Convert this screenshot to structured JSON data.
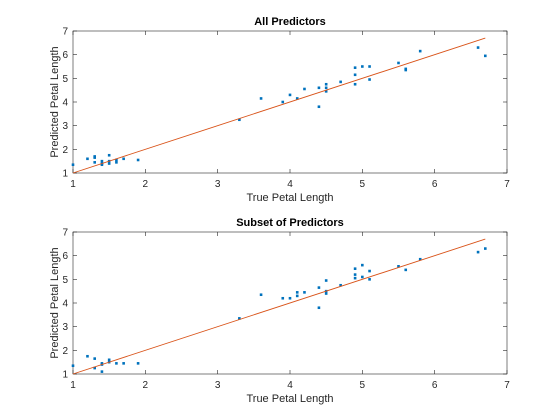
{
  "chart_data": [
    {
      "type": "scatter",
      "title": "All Predictors",
      "xlabel": "True Petal Length",
      "ylabel": "Predicted Petal Length",
      "xlim": [
        1,
        7
      ],
      "ylim": [
        1,
        7
      ],
      "xticks": [
        1,
        2,
        3,
        4,
        5,
        6,
        7
      ],
      "yticks": [
        1,
        2,
        3,
        4,
        5,
        6,
        7
      ],
      "grid": false,
      "series": [
        {
          "type": "scatter",
          "color": "#0072BD",
          "x": [
            1.0,
            1.2,
            1.3,
            1.3,
            1.3,
            1.4,
            1.4,
            1.4,
            1.5,
            1.5,
            1.5,
            1.6,
            1.6,
            1.7,
            1.9,
            3.3,
            3.6,
            3.9,
            4.0,
            4.1,
            4.2,
            4.4,
            4.4,
            4.5,
            4.5,
            4.5,
            4.7,
            4.9,
            4.9,
            4.9,
            5.0,
            5.1,
            5.1,
            5.5,
            5.6,
            5.6,
            5.8,
            6.6,
            6.7
          ],
          "y": [
            1.35,
            1.6,
            1.45,
            1.65,
            1.7,
            1.4,
            1.5,
            1.35,
            1.75,
            1.4,
            1.5,
            1.55,
            1.45,
            1.6,
            1.55,
            3.25,
            4.15,
            4.0,
            4.3,
            4.15,
            4.55,
            3.8,
            4.6,
            4.45,
            4.6,
            4.75,
            4.85,
            4.75,
            5.15,
            5.45,
            5.5,
            4.95,
            5.5,
            5.65,
            5.35,
            5.4,
            6.15,
            6.3,
            5.95
          ]
        },
        {
          "type": "line",
          "color": "#D95319",
          "x": [
            1.0,
            6.7
          ],
          "y": [
            1.0,
            6.7
          ]
        }
      ]
    },
    {
      "type": "scatter",
      "title": "Subset of Predictors",
      "xlabel": "True Petal Length",
      "ylabel": "Predicted Petal Length",
      "xlim": [
        1,
        7
      ],
      "ylim": [
        1,
        7
      ],
      "xticks": [
        1,
        2,
        3,
        4,
        5,
        6,
        7
      ],
      "yticks": [
        1,
        2,
        3,
        4,
        5,
        6,
        7
      ],
      "grid": false,
      "series": [
        {
          "type": "scatter",
          "color": "#0072BD",
          "x": [
            1.0,
            1.2,
            1.3,
            1.3,
            1.4,
            1.4,
            1.4,
            1.5,
            1.5,
            1.6,
            1.7,
            1.9,
            3.3,
            3.6,
            3.9,
            4.0,
            4.1,
            4.1,
            4.2,
            4.4,
            4.4,
            4.5,
            4.5,
            4.5,
            4.7,
            4.9,
            4.9,
            4.9,
            5.0,
            5.0,
            5.1,
            5.1,
            5.5,
            5.6,
            5.8,
            6.6,
            6.7
          ],
          "y": [
            1.35,
            1.75,
            1.65,
            1.25,
            1.45,
            1.4,
            1.1,
            1.6,
            1.5,
            1.45,
            1.45,
            1.45,
            3.35,
            4.35,
            4.2,
            4.2,
            4.3,
            4.45,
            4.45,
            3.8,
            4.65,
            4.4,
            4.5,
            4.95,
            4.75,
            5.05,
            5.2,
            5.45,
            5.6,
            5.1,
            5.0,
            5.35,
            5.55,
            5.4,
            5.85,
            6.15,
            6.3
          ]
        },
        {
          "type": "line",
          "color": "#D95319",
          "x": [
            1.0,
            6.7
          ],
          "y": [
            1.0,
            6.7
          ]
        }
      ]
    }
  ]
}
